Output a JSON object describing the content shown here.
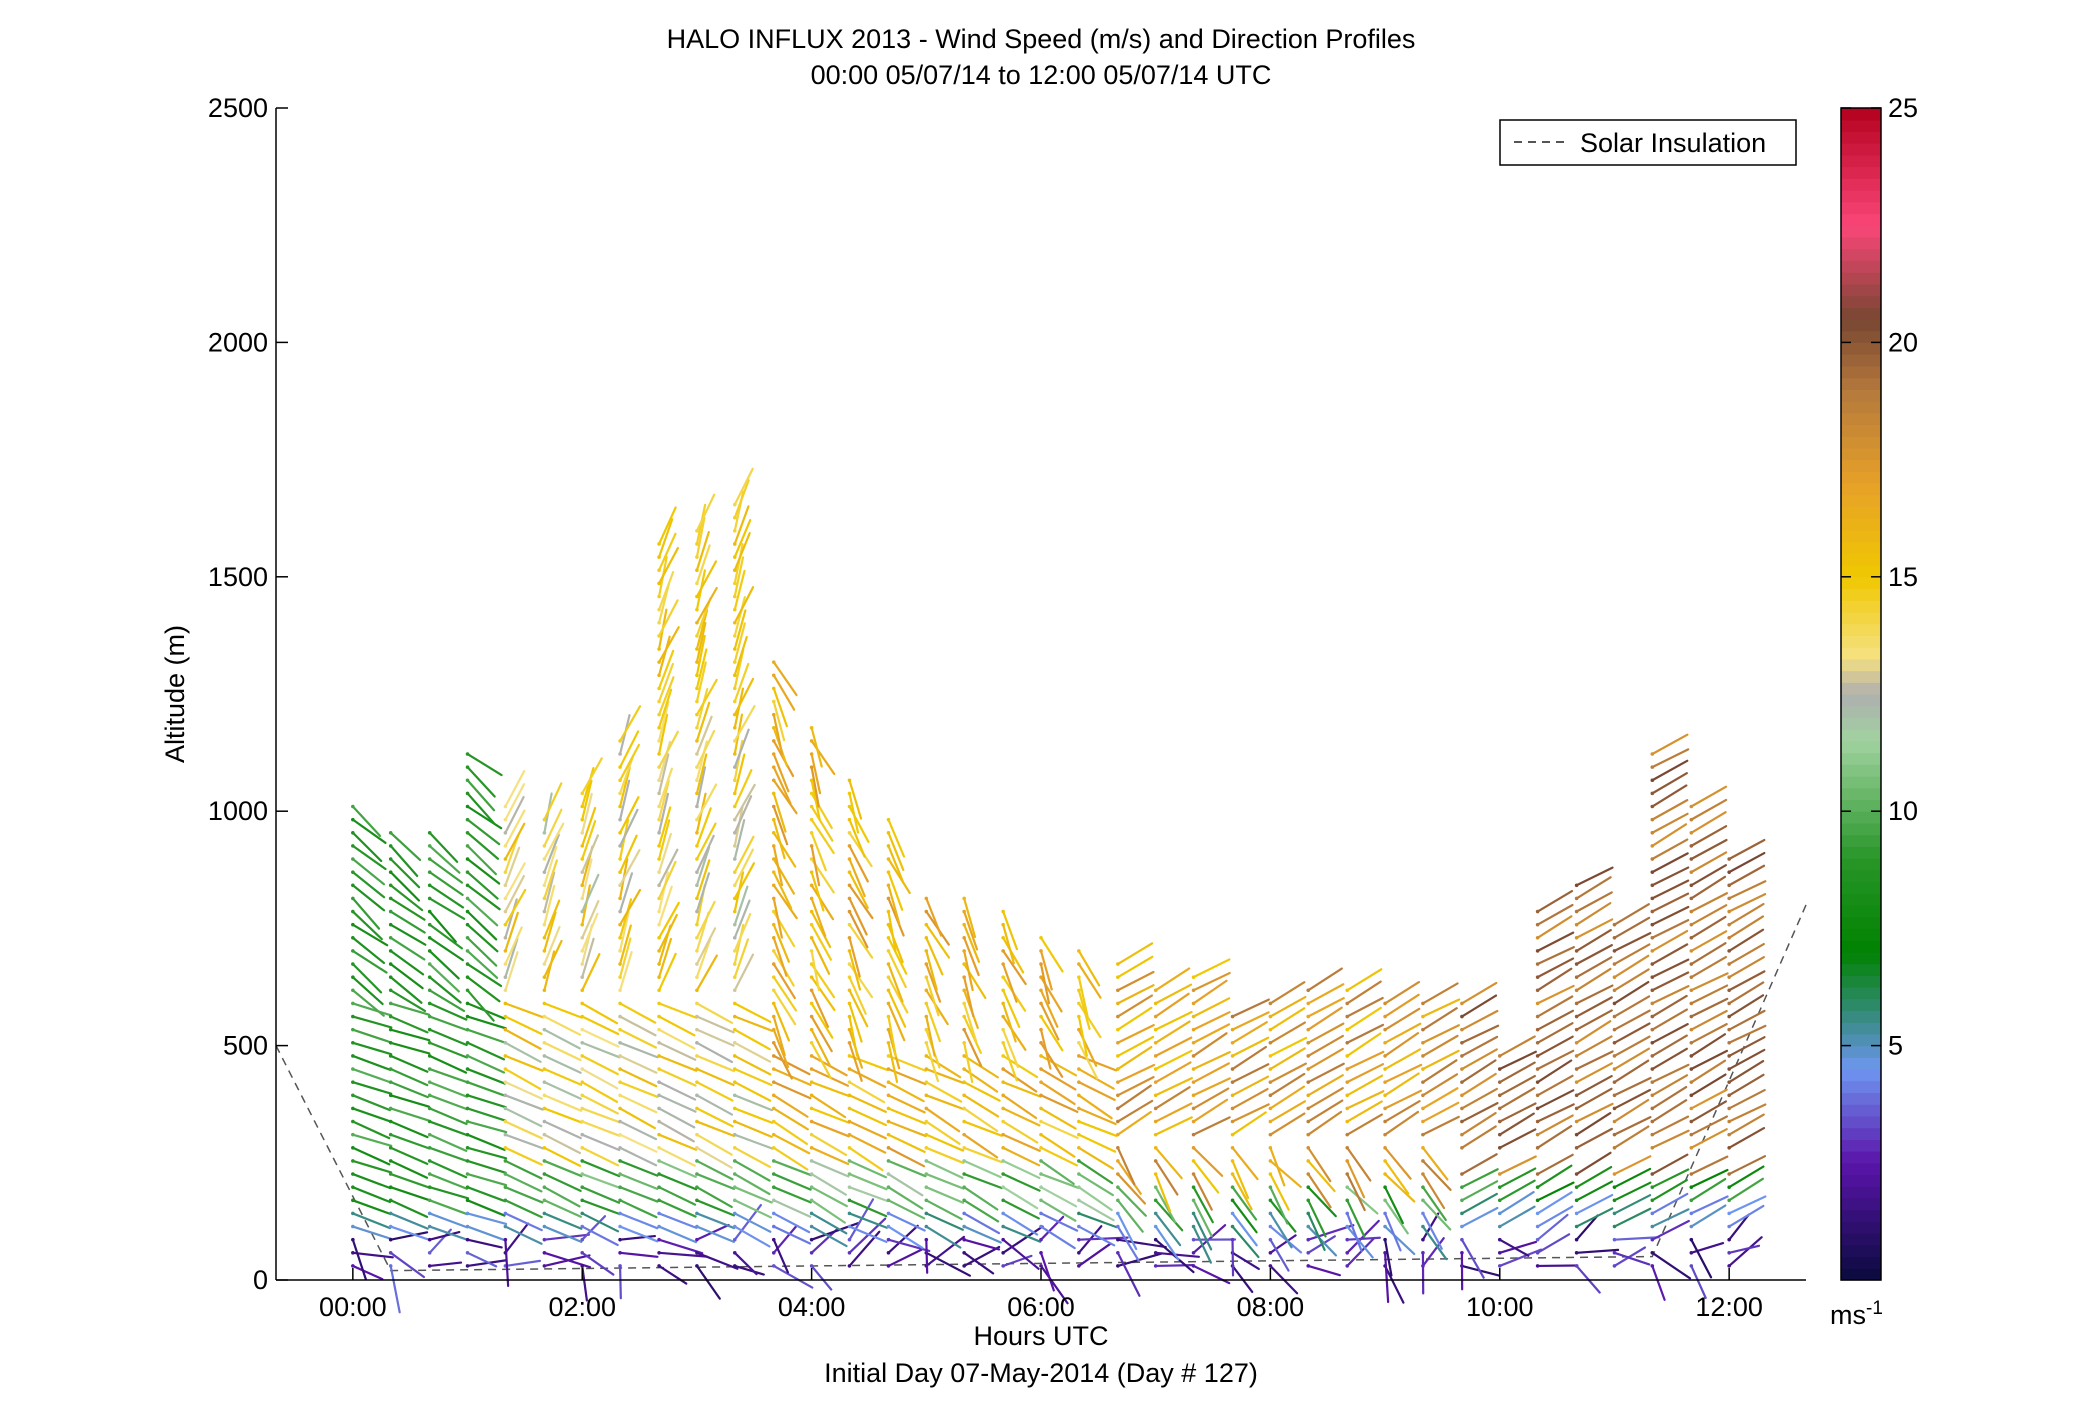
{
  "chart_data": {
    "type": "wind-barb-profile",
    "title": "HALO INFLUX 2013 - Wind Speed (m/s) and Direction Profiles",
    "subtitle": "00:00 05/07/14 to 12:00 05/07/14  UTC",
    "xlabel": "Hours UTC",
    "xlabel2": "Initial Day 07-May-2014 (Day # 127)",
    "ylabel": "Altitude (m)",
    "x_ticks": [
      "00:00",
      "02:00",
      "04:00",
      "06:00",
      "08:00",
      "10:00",
      "12:00"
    ],
    "x_tick_hours": [
      0,
      2,
      4,
      6,
      8,
      10,
      12
    ],
    "xlim_hours": [
      -0.67,
      12.67
    ],
    "ylim": [
      0,
      2500
    ],
    "y_ticks": [
      "0",
      "500",
      "1000",
      "1500",
      "2000",
      "2500"
    ],
    "y_tick_values": [
      0,
      500,
      1000,
      1500,
      2000,
      2500
    ],
    "legend": {
      "label": "Solar Insulation",
      "placement": "top-right"
    },
    "colorbar": {
      "range": [
        0,
        25
      ],
      "ticks": [
        "5",
        "10",
        "15",
        "20",
        "25"
      ],
      "tick_values": [
        5,
        10,
        15,
        20,
        25
      ],
      "unit": "ms",
      "unit_exp": "-1"
    },
    "profile_times_hours": [
      0,
      0.33,
      0.67,
      1.0,
      1.33,
      1.67,
      2.0,
      2.33,
      2.67,
      3.0,
      3.33,
      3.67,
      4.0,
      4.33,
      4.67,
      5.0,
      5.33,
      5.67,
      6.0,
      6.33,
      6.67,
      7.0,
      7.33,
      7.67,
      8.0,
      8.33,
      8.67,
      9.0,
      9.33,
      9.67,
      10.0,
      10.33,
      10.67,
      11.0,
      11.33,
      11.67,
      12.0
    ],
    "profile_top_m": [
      1010,
      970,
      970,
      1130,
      1010,
      1000,
      1050,
      1170,
      1570,
      1620,
      1660,
      1330,
      1200,
      1090,
      990,
      840,
      830,
      790,
      740,
      710,
      690,
      620,
      670,
      580,
      600,
      630,
      620,
      600,
      590,
      590,
      500,
      800,
      860,
      780,
      1130,
      1010,
      900
    ],
    "solar_insulation_line": [
      [
        -0.67,
        500
      ],
      [
        0.33,
        20
      ],
      [
        11.33,
        50
      ],
      [
        12.67,
        800
      ]
    ]
  }
}
